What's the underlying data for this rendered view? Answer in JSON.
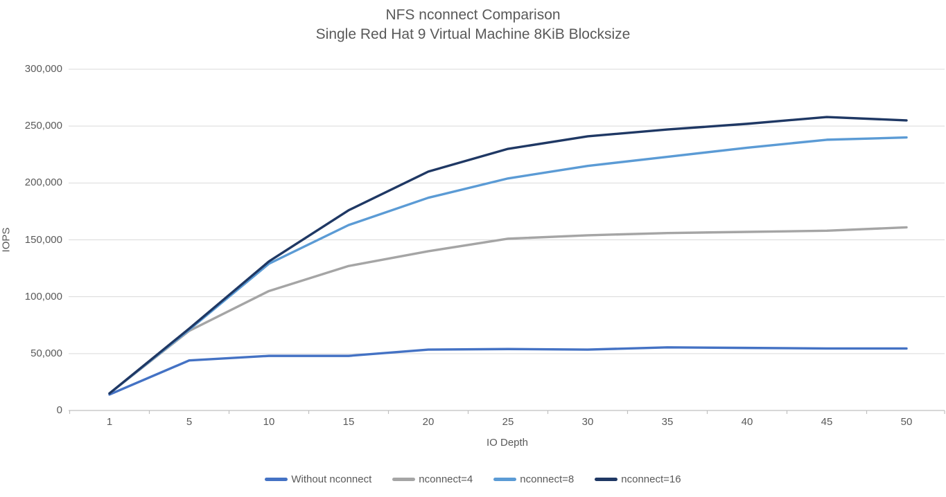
{
  "chart_data": {
    "type": "line",
    "title_line1": "NFS nconnect Comparison",
    "title_line2": "Single Red Hat 9 Virtual Machine 8KiB Blocksize",
    "xlabel": "IO Depth",
    "ylabel": "IOPS",
    "categories": [
      "1",
      "5",
      "10",
      "15",
      "20",
      "25",
      "30",
      "35",
      "40",
      "45",
      "50"
    ],
    "ylim": [
      0,
      300000
    ],
    "ytick_step": 50000,
    "yticks": [
      {
        "value": 0,
        "label": "0"
      },
      {
        "value": 50000,
        "label": "50,000"
      },
      {
        "value": 100000,
        "label": "100,000"
      },
      {
        "value": 150000,
        "label": "150,000"
      },
      {
        "value": 200000,
        "label": "200,000"
      },
      {
        "value": 250000,
        "label": "250,000"
      },
      {
        "value": 300000,
        "label": "300,000"
      }
    ],
    "grid": true,
    "legend_position": "bottom",
    "series": [
      {
        "name": "Without nconnect",
        "color": "#4472C4",
        "values": [
          14000,
          44000,
          48000,
          48000,
          53500,
          54000,
          53500,
          55500,
          55000,
          54500,
          54500
        ]
      },
      {
        "name": "nconnect=4",
        "color": "#A5A5A5",
        "values": [
          15000,
          70000,
          105000,
          127000,
          140000,
          151000,
          154000,
          156000,
          157000,
          158000,
          161000
        ]
      },
      {
        "name": "nconnect=8",
        "color": "#5B9BD5",
        "values": [
          15000,
          71000,
          129000,
          163000,
          187000,
          204000,
          215000,
          223000,
          231000,
          238000,
          240000
        ]
      },
      {
        "name": "nconnect=16",
        "color": "#1F3864",
        "values": [
          15000,
          72000,
          131000,
          176000,
          210000,
          230000,
          241000,
          247000,
          252000,
          258000,
          255000
        ]
      }
    ]
  },
  "colors": {
    "title_text": "#595959",
    "tick_text": "#595959",
    "gridline": "#D9D9D9",
    "axis_line": "#BFBFBF",
    "background": "#FFFFFF"
  }
}
